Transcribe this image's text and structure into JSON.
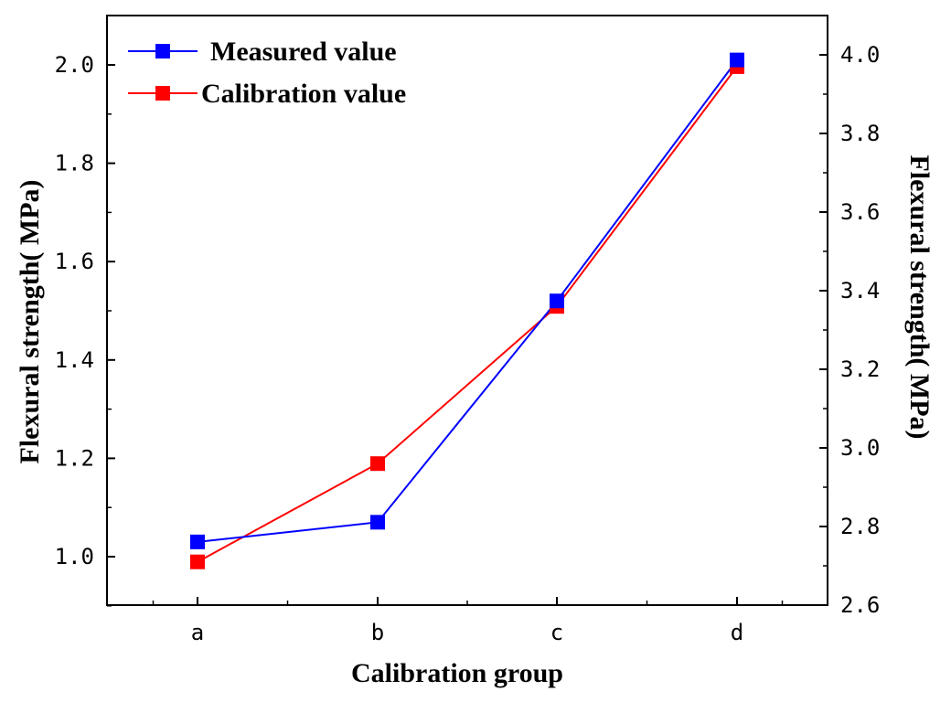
{
  "chart_data": {
    "type": "line",
    "categories": [
      "a",
      "b",
      "c",
      "d"
    ],
    "xlabel": "Calibration group",
    "ylabel_left": "Flexural strength(  MPa)",
    "ylabel_right": "Flexural strength(  MPa)",
    "ylim_left": [
      0.9,
      2.1
    ],
    "ylim_right": [
      2.6,
      4.1
    ],
    "yticks_left": [
      "1.0",
      "1.2",
      "1.4",
      "1.6",
      "1.8",
      "2.0"
    ],
    "yticks_right": [
      "2.6",
      "2.8",
      "3.0",
      "3.2",
      "3.4",
      "3.6",
      "3.8",
      "4.0"
    ],
    "series": [
      {
        "name": "Measured value",
        "color": "#0000ff",
        "axis": "left",
        "values": [
          1.03,
          1.07,
          1.52,
          2.01
        ]
      },
      {
        "name": "Calibration value",
        "color": "#ff0000",
        "axis": "right",
        "values": [
          2.71,
          2.96,
          3.36,
          3.97
        ]
      }
    ],
    "legend_position": "top-left",
    "grid": false
  }
}
